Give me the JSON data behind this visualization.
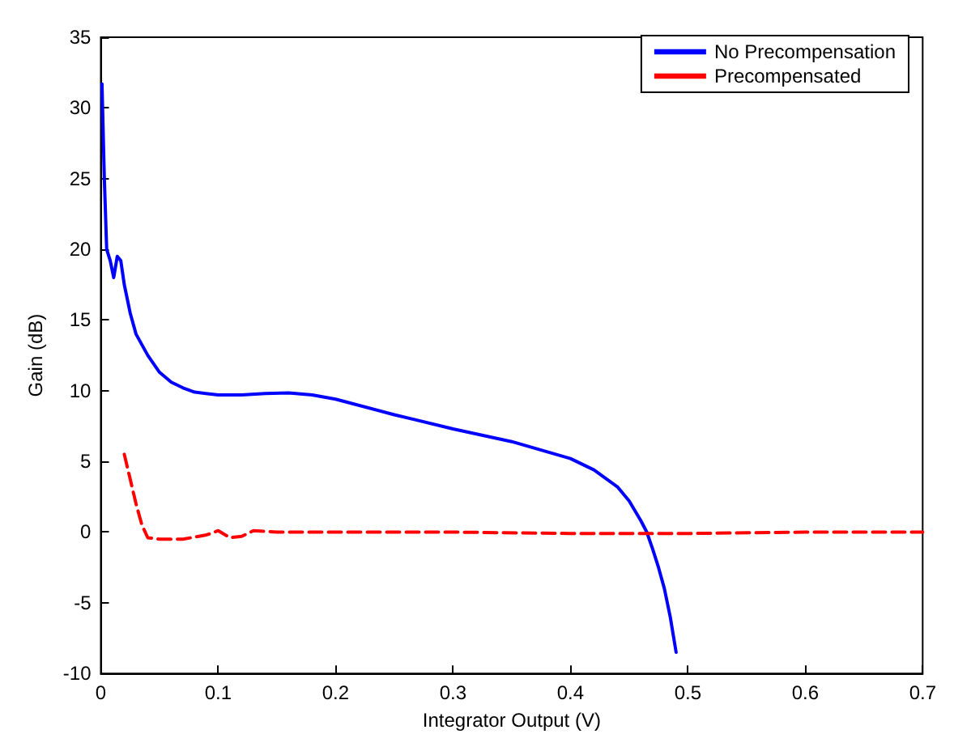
{
  "chart_data": {
    "type": "line",
    "xlabel": "Integrator Output (V)",
    "ylabel": "Gain (dB)",
    "xlim": [
      0,
      0.7
    ],
    "xticks": [
      0,
      0.1,
      0.2,
      0.3,
      0.4,
      0.5,
      0.6,
      0.7
    ],
    "ylim": [
      -10,
      35
    ],
    "yticks": [
      -10,
      -5,
      0,
      5,
      10,
      15,
      20,
      25,
      30,
      35
    ],
    "grid": false,
    "legend": "top right",
    "marker": "none",
    "series": [
      {
        "name": "No Precompensation",
        "color": "#0000ff",
        "line_style": "solid",
        "x": [
          0.001,
          0.003,
          0.005,
          0.008,
          0.011,
          0.014,
          0.017,
          0.02,
          0.025,
          0.03,
          0.04,
          0.05,
          0.06,
          0.07,
          0.08,
          0.1,
          0.12,
          0.14,
          0.16,
          0.18,
          0.2,
          0.25,
          0.3,
          0.35,
          0.4,
          0.42,
          0.44,
          0.45,
          0.46,
          0.465,
          0.47,
          0.475,
          0.48,
          0.485,
          0.49
        ],
        "values": [
          31.7,
          25,
          20,
          19.2,
          18,
          19.5,
          19.2,
          17.5,
          15.5,
          14,
          12.5,
          11.3,
          10.6,
          10.2,
          9.9,
          9.7,
          9.7,
          9.8,
          9.85,
          9.7,
          9.4,
          8.3,
          7.3,
          6.4,
          5.2,
          4.4,
          3.2,
          2.2,
          0.8,
          0,
          -1.2,
          -2.5,
          -4,
          -6,
          -8.5
        ]
      },
      {
        "name": "Precompensated",
        "color": "#ff0000",
        "line_style": "dashed",
        "x": [
          0.02,
          0.03,
          0.035,
          0.04,
          0.05,
          0.07,
          0.09,
          0.1,
          0.11,
          0.12,
          0.13,
          0.15,
          0.2,
          0.3,
          0.4,
          0.5,
          0.6,
          0.7
        ],
        "values": [
          5.5,
          2,
          0.5,
          -0.4,
          -0.5,
          -0.5,
          -0.2,
          0.1,
          -0.4,
          -0.3,
          0.1,
          0,
          0,
          0,
          -0.1,
          -0.1,
          0,
          0
        ]
      }
    ]
  }
}
